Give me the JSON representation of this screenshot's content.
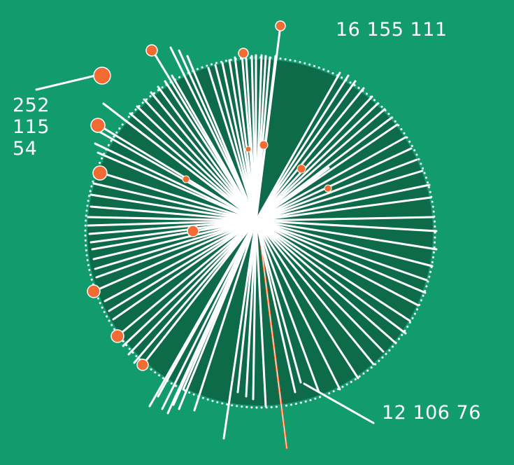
{
  "colors": {
    "background": "#129b6d",
    "disc": "#0e6b4a",
    "ray": "#ffffff",
    "dot": "#f26b32",
    "highlight_ray": "#f26b32",
    "dotted_outline": "#ffffff"
  },
  "labels": {
    "top": "16 155 111",
    "bottom": "12 106 76",
    "left": [
      "252",
      "115",
      "54"
    ]
  }
}
